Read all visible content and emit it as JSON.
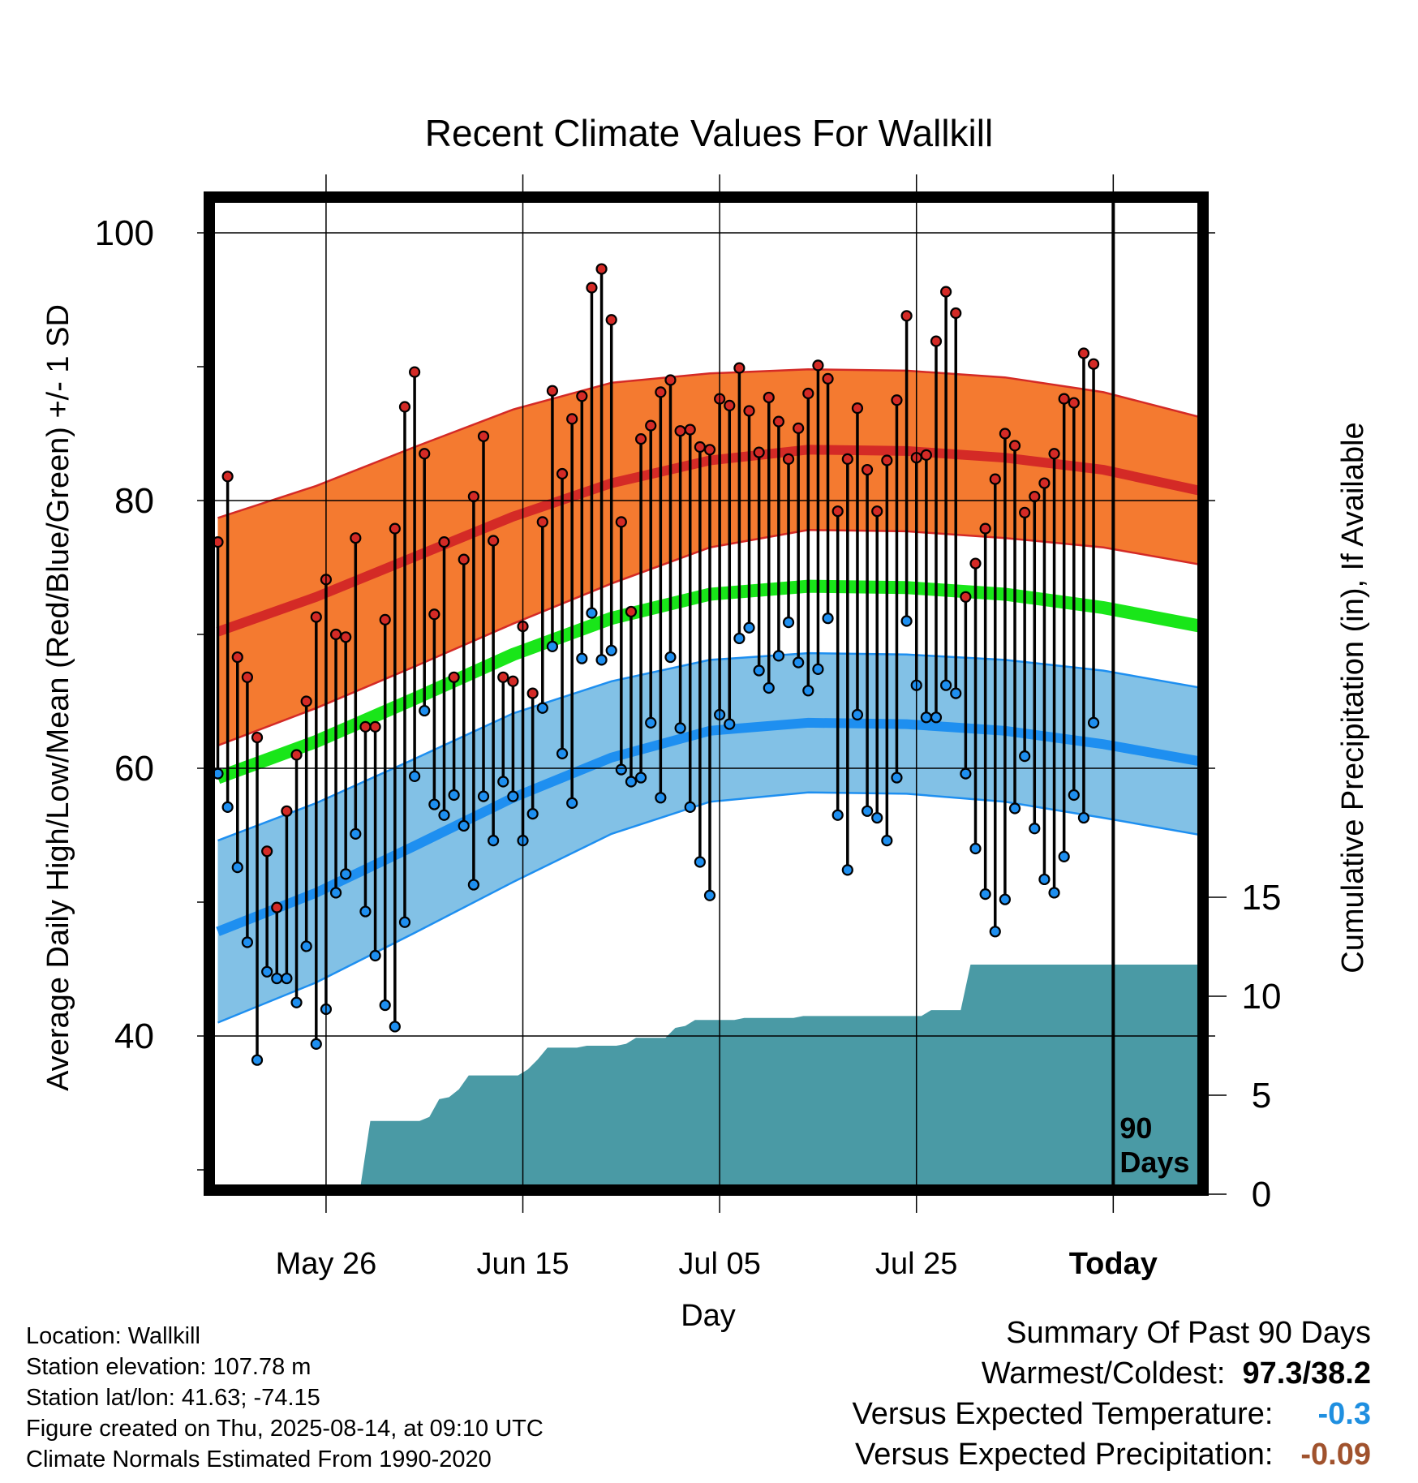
{
  "title": "Recent Climate Values For Wallkill",
  "location_label": "Location: Wallkill",
  "elevation_label": "Station elevation: 107.78 m",
  "latlon_label": "Station lat/lon: 41.63; -74.15",
  "created_label": "Figure created on Thu, 2025-08-14, at 09:10 UTC",
  "normals_label": "Climate Normals Estimated From 1990-2020",
  "summary": {
    "heading": "Summary Of Past 90 Days",
    "warm_cold_label": "Warmest/Coldest:",
    "warm_cold_value": "97.3/38.2",
    "temp_label": "Versus Expected Temperature:",
    "temp_value": "-0.3",
    "temp_color": "#1f8fe0",
    "precip_label": "Versus Expected Precipitation:",
    "precip_value": "-0.09",
    "precip_color": "#a0522d"
  },
  "chart_data": {
    "type": "line",
    "title": "Recent Climate Values For Wallkill",
    "xlabel": "Day",
    "ylabel": "Average Daily High/Low/Mean (Red/Blue/Green) +/- 1 SD",
    "y2label": "Cumulative Precipitation (in), If Available",
    "x_tick_labels": [
      "May 26",
      "Jun 15",
      "Jul 05",
      "Jul 25",
      "Today"
    ],
    "y_ticks": [
      40,
      60,
      80,
      100
    ],
    "y2_ticks": [
      0,
      5,
      10,
      15
    ],
    "today_annotation": "90\nDays",
    "colors": {
      "high_band": "#f47a30",
      "high_line": "#d42a26",
      "mean_line": "#19e619",
      "low_band": "#82c1e6",
      "low_line": "#1e8ff0",
      "precip": "#4a9aa5",
      "high_point": "#d42a26",
      "low_point": "#1e8ff0"
    },
    "start_date": "2025-05-15",
    "end_date": "2025-08-23",
    "today": "2025-08-14",
    "normals": {
      "dates": [
        "2025-05-15",
        "2025-05-25",
        "2025-06-04",
        "2025-06-14",
        "2025-06-24",
        "2025-07-04",
        "2025-07-14",
        "2025-07-24",
        "2025-08-03",
        "2025-08-13",
        "2025-08-23"
      ],
      "high_mean": [
        70.2,
        72.8,
        75.8,
        78.8,
        81.3,
        83.0,
        83.8,
        83.7,
        83.2,
        82.3,
        80.7
      ],
      "high_sd": [
        8.5,
        8.3,
        8.2,
        8.0,
        7.5,
        6.5,
        6.0,
        6.0,
        6.0,
        5.8,
        5.5
      ],
      "mean": [
        59.3,
        62.0,
        65.2,
        68.5,
        71.2,
        73.0,
        73.6,
        73.5,
        73.0,
        72.0,
        70.6
      ],
      "low_mean": [
        47.8,
        50.7,
        54.2,
        57.8,
        60.8,
        62.8,
        63.4,
        63.3,
        62.8,
        61.8,
        60.5
      ],
      "low_sd": [
        6.8,
        6.7,
        6.5,
        6.3,
        5.7,
        5.3,
        5.2,
        5.2,
        5.3,
        5.5,
        5.5
      ]
    },
    "highs": [
      76.9,
      81.8,
      68.3,
      66.8,
      62.3,
      53.8,
      49.6,
      56.8,
      61.0,
      65.0,
      71.3,
      74.1,
      70.0,
      69.8,
      77.2,
      63.1,
      63.1,
      71.1,
      77.9,
      87.0,
      89.6,
      83.5,
      71.5,
      76.9,
      66.8,
      75.6,
      80.3,
      84.8,
      77.0,
      66.8,
      66.5,
      70.6,
      65.6,
      78.4,
      88.2,
      82.0,
      86.1,
      87.8,
      95.9,
      97.3,
      93.5,
      78.4,
      71.7,
      84.6,
      85.6,
      88.1,
      89.0,
      85.2,
      85.3,
      84.0,
      83.8,
      87.6,
      87.1,
      89.9,
      86.7,
      83.6,
      87.7,
      85.9,
      83.1,
      85.4,
      88.0,
      90.1,
      89.1,
      79.2,
      83.1,
      86.9,
      82.3,
      79.2,
      83.0,
      87.5,
      93.8,
      83.2,
      83.4,
      91.9,
      95.6,
      94.0,
      72.8,
      75.3,
      77.9,
      81.6,
      85.0,
      84.1,
      79.1,
      80.3,
      81.3,
      83.5,
      87.6,
      87.3,
      91.0,
      90.2
    ],
    "lows": [
      59.6,
      57.1,
      52.6,
      47.0,
      38.2,
      44.8,
      44.3,
      44.3,
      42.5,
      46.7,
      39.4,
      42.0,
      50.7,
      52.1,
      55.1,
      49.3,
      46.0,
      42.3,
      40.7,
      48.5,
      59.4,
      64.3,
      57.3,
      56.5,
      58.0,
      55.7,
      51.3,
      57.9,
      54.6,
      59.0,
      57.9,
      54.6,
      56.6,
      64.5,
      69.1,
      61.1,
      57.4,
      68.2,
      71.6,
      68.1,
      68.8,
      59.9,
      59.0,
      59.3,
      63.4,
      57.8,
      68.3,
      63.0,
      57.1,
      53.0,
      50.5,
      64.0,
      63.3,
      69.7,
      70.5,
      67.3,
      66.0,
      68.4,
      70.9,
      67.9,
      65.8,
      67.4,
      71.2,
      56.5,
      52.4,
      64.0,
      56.8,
      56.3,
      54.6,
      59.3,
      71.0,
      66.2,
      63.8,
      63.8,
      66.2,
      65.6,
      59.6,
      54.0,
      50.6,
      47.8,
      50.2,
      57.0,
      60.9,
      55.5,
      51.7,
      50.7,
      53.4,
      58.0,
      56.3,
      63.4
    ],
    "precip_cumulative": [
      0.0,
      0.0,
      0.0,
      0.0,
      0.0,
      0.0,
      0.2,
      0.3,
      0.3,
      0.3,
      0.3,
      0.3,
      0.3,
      0.4,
      0.4,
      3.7,
      3.7,
      3.7,
      3.7,
      3.7,
      3.7,
      3.9,
      4.8,
      4.9,
      5.3,
      6.0,
      6.0,
      6.0,
      6.0,
      6.0,
      6.0,
      6.3,
      6.8,
      7.4,
      7.4,
      7.4,
      7.4,
      7.5,
      7.5,
      7.5,
      7.5,
      7.6,
      7.9,
      7.9,
      7.9,
      7.9,
      8.4,
      8.5,
      8.8,
      8.8,
      8.8,
      8.8,
      8.8,
      8.9,
      8.9,
      8.9,
      8.9,
      8.9,
      8.9,
      9.0,
      9.0,
      9.0,
      9.0,
      9.0,
      9.0,
      9.0,
      9.0,
      9.0,
      9.0,
      9.0,
      9.0,
      9.0,
      9.3,
      9.3,
      9.3,
      9.3,
      11.6,
      11.6,
      11.6,
      11.6,
      11.6,
      11.6,
      11.6,
      11.6,
      11.6,
      11.6,
      11.6,
      11.6,
      11.6,
      11.6,
      11.6,
      11.6,
      11.6,
      11.6,
      11.6,
      11.6,
      11.6,
      11.6,
      11.6,
      11.6
    ]
  }
}
